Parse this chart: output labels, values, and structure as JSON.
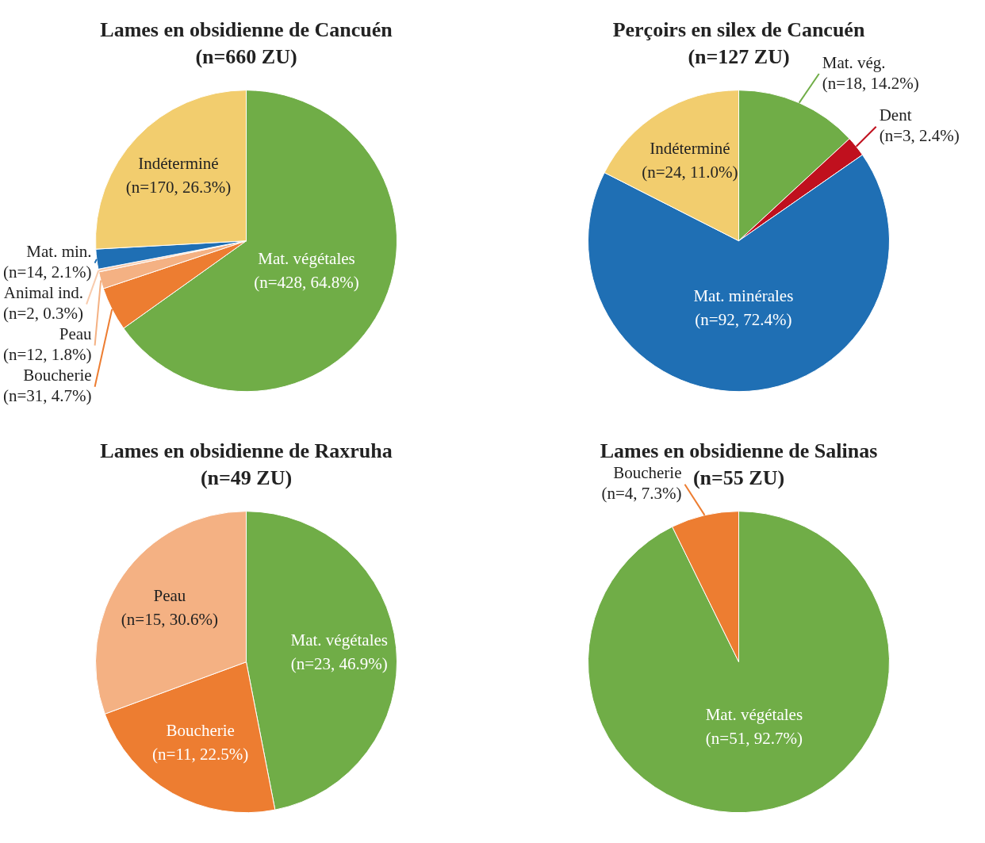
{
  "chart_data": [
    {
      "type": "pie",
      "title": "Lames en obsidienne de Cancuén",
      "subtitle": "(n=660 ZU)",
      "categories": [
        "Mat. végétales",
        "Boucherie",
        "Peau",
        "Animal ind.",
        "Mat. min.",
        "Indéterminé"
      ],
      "values": [
        428,
        31,
        12,
        2,
        14,
        170
      ],
      "value_labels": [
        "(n=428, 64.8%)",
        "(n=31, 4.7%)",
        "(n=12, 1.8%)",
        "(n=2, 0.3%)",
        "(n=14, 2.1%)",
        "(n=170, 26.3%)"
      ],
      "colors": [
        "#70ad47",
        "#ed7d31",
        "#f4b183",
        "#f8cbad",
        "#1f6fb4",
        "#f2cd6e"
      ],
      "legend": false
    },
    {
      "type": "pie",
      "title": "Perçoirs en silex de Cancuén",
      "subtitle": "(n=127 ZU)",
      "categories": [
        "Mat. vég.",
        "Dent",
        "Mat. minérales",
        "Indéterminé"
      ],
      "values": [
        18,
        3,
        92,
        24
      ],
      "value_labels": [
        "(n=18, 14.2%)",
        "(n=3, 2.4%)",
        "(n=92, 72.4%)",
        "(n=24, 11.0%)"
      ],
      "colors": [
        "#70ad47",
        "#c0101e",
        "#1f6fb4",
        "#f2cd6e"
      ],
      "legend": false
    },
    {
      "type": "pie",
      "title": "Lames en obsidienne de Raxruha",
      "subtitle": "(n=49 ZU)",
      "categories": [
        "Mat. végétales",
        "Boucherie",
        "Peau"
      ],
      "values": [
        23,
        11,
        15
      ],
      "value_labels": [
        "(n=23, 46.9%)",
        "(n=11, 22.5%)",
        "(n=15, 30.6%)"
      ],
      "colors": [
        "#70ad47",
        "#ed7d31",
        "#f4b183"
      ],
      "legend": false
    },
    {
      "type": "pie",
      "title": "Lames en obsidienne de Salinas",
      "subtitle": "(n=55 ZU)",
      "categories": [
        "Mat. végétales",
        "Boucherie"
      ],
      "values": [
        51,
        4
      ],
      "value_labels": [
        "(n=51, 92.7%)",
        "(n=4, 7.3%)"
      ],
      "colors": [
        "#70ad47",
        "#ed7d31"
      ],
      "legend": false
    }
  ]
}
